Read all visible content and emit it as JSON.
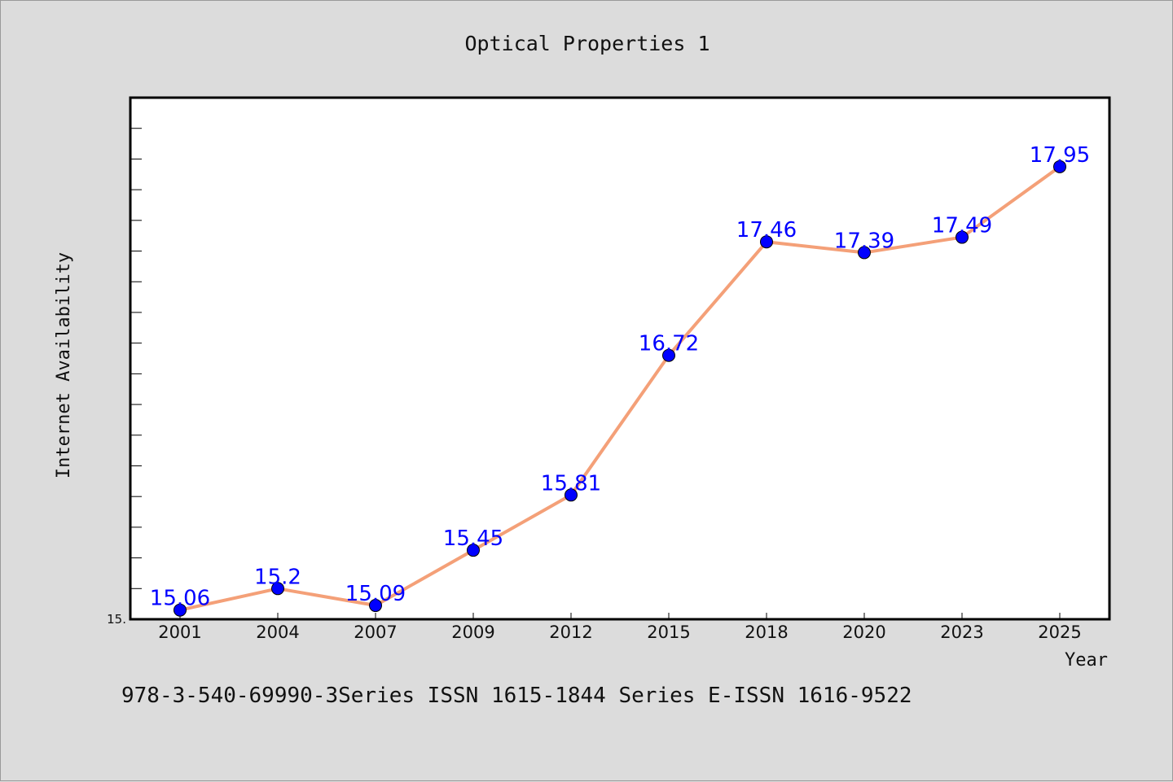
{
  "chart_data": {
    "type": "line",
    "title": "Optical Properties 1",
    "xlabel": "Year",
    "ylabel": "Internet Availability",
    "categories": [
      "2001",
      "2004",
      "2007",
      "2009",
      "2012",
      "2015",
      "2018",
      "2020",
      "2023",
      "2025"
    ],
    "series": [
      {
        "values": [
          15.06,
          15.2,
          15.09,
          15.45,
          15.81,
          16.72,
          17.46,
          17.39,
          17.49,
          17.95
        ],
        "data_labels": [
          "15.06",
          "15.2",
          "15.09",
          "15.45",
          "15.81",
          "16.72",
          "17.46",
          "17.39",
          "17.49",
          "17.95"
        ]
      }
    ],
    "ylim": [
      15.0,
      18.4
    ],
    "ytick_labels": [
      "15."
    ],
    "ytick_values": [
      15.0
    ],
    "minor_ytick_step": 0.2,
    "grid": false,
    "line_color": "#f4a078",
    "marker_color": "#0000ff",
    "label_color": "#0000ff"
  },
  "footer": {
    "text": "978-3-540-69990-3Series ISSN 1615-1844 Series E-ISSN 1616-9522"
  }
}
